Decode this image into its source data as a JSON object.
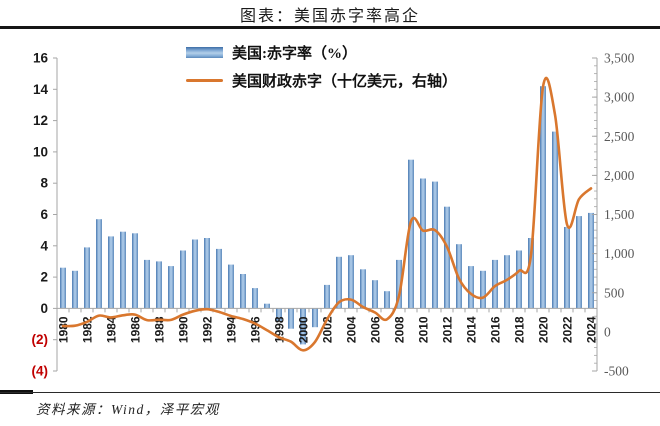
{
  "header": {
    "title": "图表：美国赤字率高企"
  },
  "footer": {
    "source": "资料来源：Wind，泽平宏观"
  },
  "legend": [
    {
      "label": "美国:赤字率（%）",
      "swatch": "blue-gradient-bar"
    },
    {
      "label": "美国财政赤字（十亿美元，右轴）",
      "swatch": "orange-line"
    }
  ],
  "colors": {
    "bar_edge": "#4a7ab2",
    "bar_light": "#a9c7e6",
    "line_orange": "#d9772e",
    "negative_red": "#c00000",
    "axis_gray": "#a6a6a6",
    "right_label_gray": "#595959",
    "label_black": "#1a1a1a"
  },
  "chart_data": {
    "type": "bar",
    "title": "图表：美国赤字率高企",
    "categories": [
      1980,
      1981,
      1982,
      1983,
      1984,
      1985,
      1986,
      1987,
      1988,
      1989,
      1990,
      1991,
      1992,
      1993,
      1994,
      1995,
      1996,
      1997,
      1998,
      1999,
      2000,
      2001,
      2002,
      2003,
      2004,
      2005,
      2006,
      2007,
      2008,
      2009,
      2010,
      2011,
      2012,
      2013,
      2014,
      2015,
      2016,
      2017,
      2018,
      2019,
      2020,
      2021,
      2022,
      2023,
      2024
    ],
    "series": [
      {
        "name": "美国:赤字率（%）",
        "render": "bar",
        "axis": "left",
        "values": [
          2.6,
          2.4,
          3.9,
          5.7,
          4.6,
          4.9,
          4.8,
          3.1,
          3.0,
          2.7,
          3.7,
          4.4,
          4.5,
          3.8,
          2.8,
          2.2,
          1.3,
          0.3,
          -0.8,
          -1.3,
          -2.3,
          -1.2,
          1.5,
          3.3,
          3.4,
          2.5,
          1.8,
          1.1,
          3.1,
          9.5,
          8.3,
          8.1,
          6.5,
          4.1,
          2.7,
          2.4,
          3.1,
          3.4,
          3.7,
          4.5,
          14.2,
          11.3,
          5.2,
          5.9,
          6.1
        ]
      },
      {
        "name": "美国财政赤字（十亿美元，右轴）",
        "render": "line",
        "axis": "right",
        "values": [
          74,
          79,
          128,
          208,
          185,
          212,
          221,
          150,
          155,
          153,
          221,
          269,
          290,
          255,
          203,
          164,
          107,
          22,
          -69,
          -126,
          -236,
          -128,
          158,
          378,
          413,
          318,
          248,
          161,
          459,
          1413,
          1294,
          1300,
          1087,
          680,
          485,
          438,
          585,
          665,
          779,
          984,
          3132,
          2775,
          1375,
          1695,
          1834
        ]
      }
    ],
    "left_axis": {
      "min": -4,
      "max": 16,
      "tick_step": 2,
      "tick_labels": [
        "16",
        "14",
        "12",
        "10",
        "8",
        "6",
        "4",
        "2",
        "0",
        "(2)",
        "(4)"
      ]
    },
    "right_axis": {
      "min": -500,
      "max": 3500,
      "tick_step": 500,
      "minor_tick_step": 100,
      "tick_labels": [
        "3,500",
        "3,000",
        "2,500",
        "2,000",
        "1,500",
        "1,000",
        "500",
        "0",
        "-500"
      ]
    },
    "x_tick_labels": [
      "1980",
      "1982",
      "1984",
      "1986",
      "1988",
      "1990",
      "1992",
      "1994",
      "1996",
      "1998",
      "2000",
      "2002",
      "2004",
      "2006",
      "2008",
      "2010",
      "2012",
      "2014",
      "2016",
      "2018",
      "2020",
      "2022",
      "2024"
    ],
    "legend_position": "top-inside",
    "grid": false
  }
}
